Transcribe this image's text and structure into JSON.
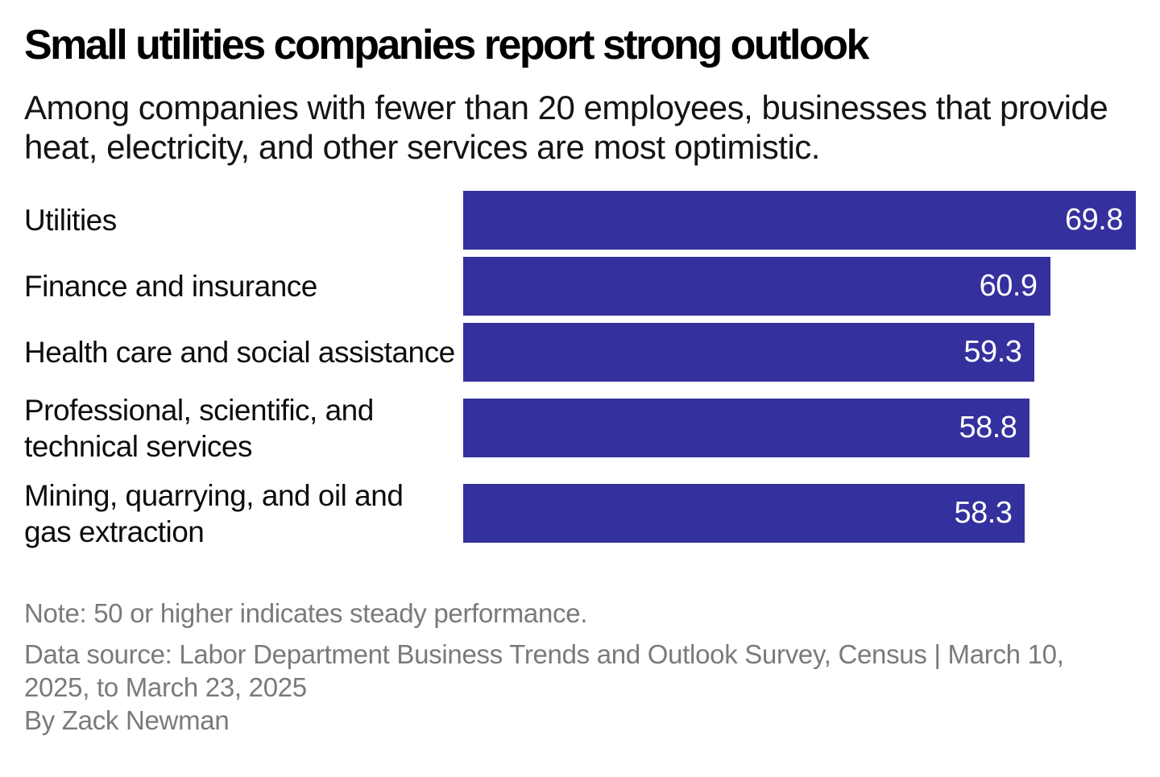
{
  "header": {
    "title": "Small utilities companies report strong outlook",
    "subtitle": "Among companies with fewer than 20 employees, businesses that provide heat, electricity, and other services are most optimistic."
  },
  "chart_data": {
    "type": "bar",
    "orientation": "horizontal",
    "title": "Small utilities companies report strong outlook",
    "subtitle": "Among companies with fewer than 20 employees, businesses that provide heat, electricity, and other services are most optimistic.",
    "categories": [
      "Utilities",
      "Finance and insurance",
      "Health care and social assistance",
      "Professional, scientific, and technical services",
      "Mining, quarrying, and oil and gas extraction"
    ],
    "values": [
      69.8,
      60.9,
      59.3,
      58.8,
      58.3
    ],
    "xlabel": "",
    "ylabel": "",
    "xlim": [
      0,
      69.8
    ],
    "grid": false,
    "legend": false,
    "value_labels_position": "inside-end",
    "bar_color": "#34309e",
    "value_label_color": "#ffffff"
  },
  "footer": {
    "note": "Note: 50 or higher indicates steady performance.",
    "source": "Data source: Labor Department Business Trends and Outlook Survey, Census | March 10, 2025, to March 23, 2025",
    "byline": "By Zack Newman"
  }
}
